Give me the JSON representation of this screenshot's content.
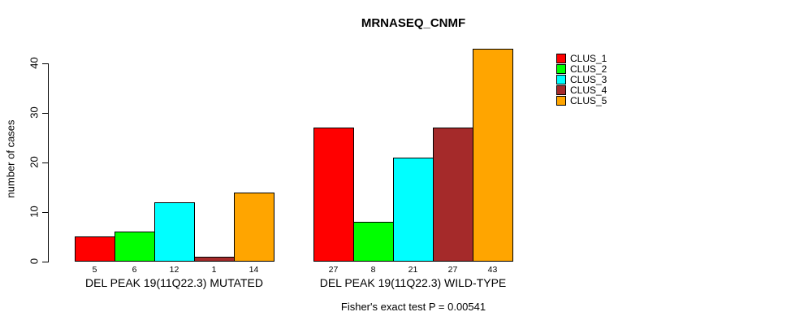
{
  "chart_data": {
    "type": "bar",
    "title": "MRNASEQ_CNMF",
    "ylabel": "number of cases",
    "xlabel": "",
    "footnote": "Fisher's exact test P = 0.00541",
    "ylim": [
      0,
      43
    ],
    "yticks": [
      0,
      10,
      20,
      30,
      40
    ],
    "grid": false,
    "legend_position": "right",
    "bar_value_labels_shown": true,
    "categories": [
      "DEL PEAK 19(11Q22.3) MUTATED",
      "DEL PEAK 19(11Q22.3) WILD-TYPE"
    ],
    "series": [
      {
        "name": "CLUS_1",
        "color": "#FF0000",
        "values": [
          5,
          27
        ]
      },
      {
        "name": "CLUS_2",
        "color": "#00FF00",
        "values": [
          6,
          8
        ]
      },
      {
        "name": "CLUS_3",
        "color": "#00FFFF",
        "values": [
          12,
          21
        ]
      },
      {
        "name": "CLUS_4",
        "color": "#A52A2A",
        "values": [
          1,
          27
        ]
      },
      {
        "name": "CLUS_5",
        "color": "#FFA500",
        "values": [
          14,
          43
        ]
      }
    ]
  }
}
